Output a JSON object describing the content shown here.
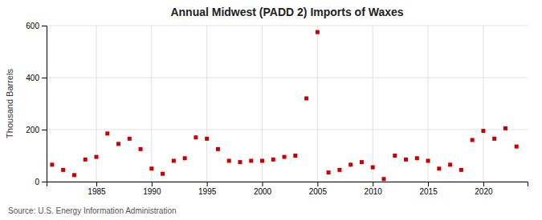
{
  "chart_data": {
    "type": "scatter",
    "title": "Annual Midwest (PADD 2) Imports of Waxes",
    "ylabel": "Thousand Barrels",
    "annotations": [
      "Source: U.S. Energy Information Administration"
    ],
    "x": [
      1981,
      1982,
      1983,
      1984,
      1985,
      1986,
      1987,
      1988,
      1989,
      1990,
      1991,
      1992,
      1993,
      1994,
      1995,
      1996,
      1997,
      1998,
      1999,
      2000,
      2001,
      2002,
      2003,
      2004,
      2005,
      2006,
      2007,
      2008,
      2009,
      2010,
      2011,
      2012,
      2013,
      2014,
      2015,
      2016,
      2017,
      2018,
      2019,
      2020,
      2021,
      2022,
      2023
    ],
    "values": [
      65,
      45,
      25,
      85,
      95,
      185,
      145,
      165,
      125,
      50,
      30,
      80,
      90,
      170,
      165,
      125,
      80,
      75,
      80,
      80,
      85,
      95,
      100,
      320,
      575,
      35,
      45,
      65,
      75,
      55,
      10,
      100,
      85,
      90,
      80,
      50,
      65,
      45,
      160,
      195,
      165,
      205,
      135
    ],
    "color": "#cc0000",
    "marker": "square",
    "xlim": [
      1980.5,
      2024
    ],
    "xticks": [
      1985,
      1990,
      1995,
      2000,
      2005,
      2010,
      2015,
      2020
    ],
    "ylim": [
      0,
      600
    ],
    "yticks": [
      0,
      200,
      400,
      600
    ],
    "grid": true
  }
}
